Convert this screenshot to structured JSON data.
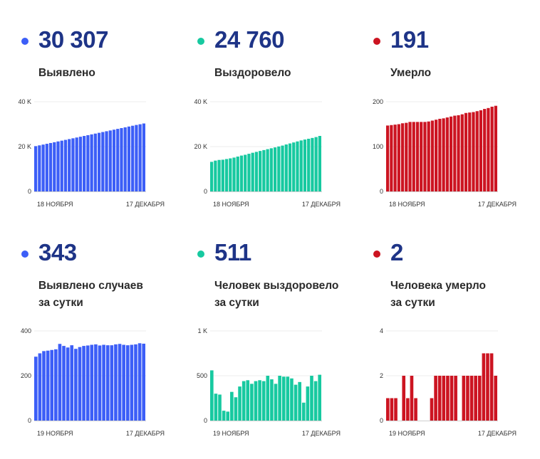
{
  "colors": {
    "blue": "#3c5ef7",
    "green": "#17c9a0",
    "red": "#cc1421"
  },
  "stats": [
    {
      "value": "30 307",
      "label": [
        "Выявлено"
      ],
      "color": "#3c5ef7"
    },
    {
      "value": "24 760",
      "label": [
        "Выздоровело"
      ],
      "color": "#17c9a0"
    },
    {
      "value": "191",
      "label": [
        "Умерло"
      ],
      "color": "#cc1421"
    },
    {
      "value": "343",
      "label": [
        "Выявлено случаев",
        "за сутки"
      ],
      "color": "#3c5ef7"
    },
    {
      "value": "511",
      "label": [
        "Человек выздоровело",
        "за сутки"
      ],
      "color": "#17c9a0"
    },
    {
      "value": "2",
      "label": [
        "Человека умерло",
        "за сутки"
      ],
      "color": "#cc1421"
    }
  ],
  "chart_data": [
    {
      "type": "bar",
      "x_start_label": "18 НОЯБРЯ",
      "x_end_label": "17 ДЕКАБРЯ",
      "yticks": [
        {
          "v": 0,
          "t": "0"
        },
        {
          "v": 20000,
          "t": "20 K"
        },
        {
          "v": 40000,
          "t": "40 K"
        }
      ],
      "ylim": [
        0,
        40000
      ],
      "values": [
        20200,
        20550,
        20900,
        21250,
        21600,
        21950,
        22300,
        22650,
        23000,
        23350,
        23700,
        24050,
        24400,
        24750,
        25100,
        25450,
        25800,
        26150,
        26500,
        26850,
        27200,
        27550,
        27900,
        28250,
        28600,
        28950,
        29300,
        29650,
        29964,
        30307
      ],
      "color": "#3c5ef7"
    },
    {
      "type": "bar",
      "x_start_label": "18 НОЯБРЯ",
      "x_end_label": "17 ДЕКАБРЯ",
      "yticks": [
        {
          "v": 0,
          "t": "0"
        },
        {
          "v": 20000,
          "t": "20 K"
        },
        {
          "v": 40000,
          "t": "40 K"
        }
      ],
      "ylim": [
        0,
        40000
      ],
      "values": [
        13200,
        13750,
        14050,
        14150,
        14450,
        14750,
        15100,
        15550,
        16000,
        16350,
        16800,
        17250,
        17650,
        18050,
        18450,
        18850,
        19250,
        19650,
        20050,
        20450,
        20950,
        21400,
        21850,
        22300,
        22750,
        23150,
        23500,
        23850,
        24249,
        24760
      ],
      "color": "#17c9a0"
    },
    {
      "type": "bar",
      "x_start_label": "18 НОЯБРЯ",
      "x_end_label": "17 ДЕКАБРЯ",
      "yticks": [
        {
          "v": 0,
          "t": "0"
        },
        {
          "v": 100,
          "t": "100"
        },
        {
          "v": 200,
          "t": "200"
        }
      ],
      "ylim": [
        0,
        200
      ],
      "values": [
        147,
        148,
        149,
        150,
        152,
        153,
        155,
        155,
        155,
        155,
        155,
        156,
        158,
        160,
        162,
        163,
        165,
        167,
        169,
        170,
        172,
        175,
        176,
        177,
        179,
        181,
        184,
        186,
        189,
        191
      ],
      "color": "#cc1421"
    },
    {
      "type": "bar",
      "x_start_label": "19 НОЯБРЯ",
      "x_end_label": "17 ДЕКАБРЯ",
      "yticks": [
        {
          "v": 0,
          "t": "0"
        },
        {
          "v": 200,
          "t": "200"
        },
        {
          "v": 400,
          "t": "400"
        }
      ],
      "ylim": [
        0,
        400
      ],
      "values": [
        285,
        300,
        310,
        312,
        315,
        318,
        342,
        333,
        326,
        336,
        320,
        328,
        333,
        335,
        338,
        340,
        335,
        338,
        336,
        336,
        340,
        342,
        338,
        336,
        338,
        340,
        345,
        343
      ],
      "color": "#3c5ef7"
    },
    {
      "type": "bar",
      "x_start_label": "19 НОЯБРЯ",
      "x_end_label": "17 ДЕКАБРЯ",
      "yticks": [
        {
          "v": 0,
          "t": "0"
        },
        {
          "v": 500,
          "t": "500"
        },
        {
          "v": 1000,
          "t": "1 K"
        }
      ],
      "ylim": [
        0,
        1000
      ],
      "values": [
        560,
        300,
        290,
        110,
        100,
        320,
        260,
        380,
        440,
        450,
        410,
        440,
        450,
        440,
        500,
        460,
        410,
        500,
        490,
        490,
        470,
        400,
        430,
        200,
        380,
        500,
        440,
        511
      ],
      "color": "#17c9a0"
    },
    {
      "type": "bar",
      "x_start_label": "19 НОЯБРЯ",
      "x_end_label": "17 ДЕКАБРЯ",
      "yticks": [
        {
          "v": 0,
          "t": "0"
        },
        {
          "v": 2,
          "t": "2"
        },
        {
          "v": 4,
          "t": "4"
        }
      ],
      "ylim": [
        0,
        4
      ],
      "values": [
        1,
        1,
        1,
        0,
        2,
        1,
        2,
        1,
        0,
        0,
        0,
        1,
        2,
        2,
        2,
        2,
        2,
        2,
        0,
        2,
        2,
        2,
        2,
        2,
        3,
        3,
        3,
        2
      ],
      "color": "#cc1421"
    }
  ]
}
